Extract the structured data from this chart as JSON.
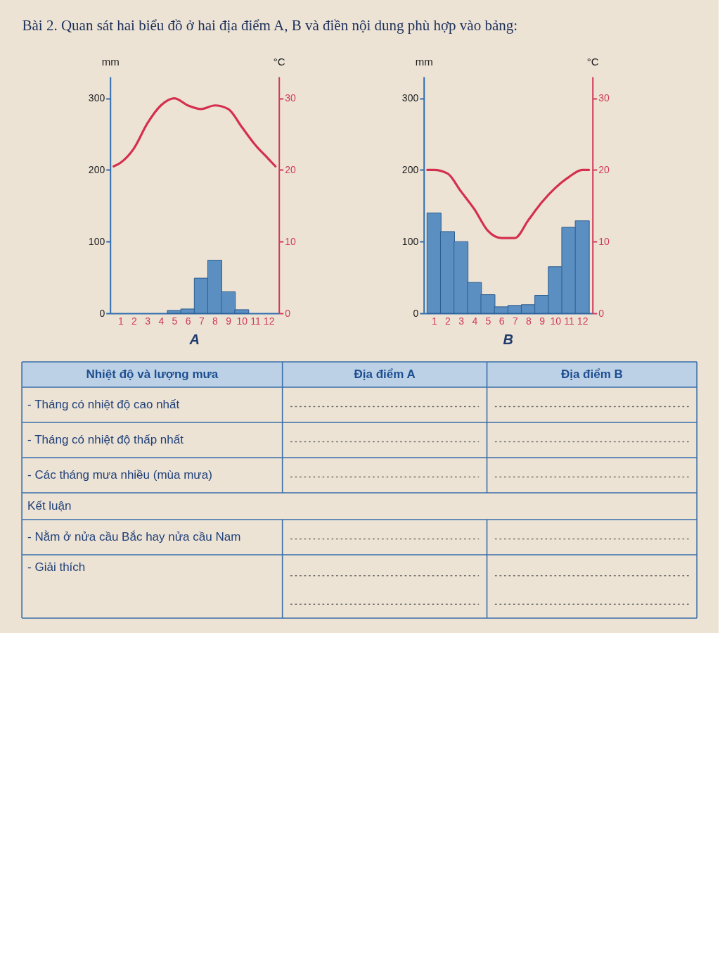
{
  "chart_data": [
    {
      "type": "other",
      "title": "Bài 2. Quan sát hai biểu đồ ở hai địa điểm A, B và điền nội dung phù hợp vào bảng:"
    },
    {
      "type": "bar",
      "title": "A",
      "ylabel": "mm",
      "y2label": "°C",
      "xlim": [
        0.5,
        12.5
      ],
      "xticks": [
        1,
        2,
        3,
        4,
        5,
        6,
        7,
        8,
        9,
        10,
        11,
        12
      ],
      "ylim": [
        0,
        330
      ],
      "yticks": [
        0,
        100,
        200,
        300
      ],
      "y2lim": [
        0,
        33
      ],
      "y2ticks": [
        0,
        10,
        20,
        30
      ],
      "series": [
        {
          "type": "bar",
          "color": "#5b8fc2",
          "x": [
            5,
            6,
            7,
            8,
            9,
            10
          ],
          "values": [
            4,
            6,
            49,
            74,
            30,
            5
          ]
        },
        {
          "type": "line",
          "axis": "y2",
          "color": "#d4304e",
          "x": [
            0.5,
            1,
            2,
            3,
            4,
            5,
            6,
            7,
            8,
            9,
            10,
            11,
            12,
            12.5
          ],
          "values": [
            20.5,
            21,
            23,
            26.5,
            29,
            30,
            29,
            28.5,
            29,
            28.5,
            26,
            23.5,
            21.5,
            20.5
          ]
        }
      ]
    },
    {
      "type": "bar",
      "title": "B",
      "ylabel": "mm",
      "y2label": "°C",
      "xlim": [
        0.5,
        12.5
      ],
      "xticks": [
        1,
        2,
        3,
        4,
        5,
        6,
        7,
        8,
        9,
        10,
        11,
        12
      ],
      "ylim": [
        0,
        330
      ],
      "yticks": [
        0,
        100,
        200,
        300
      ],
      "y2lim": [
        0,
        33
      ],
      "y2ticks": [
        0,
        10,
        20,
        30
      ],
      "series": [
        {
          "type": "bar",
          "color": "#5b8fc2",
          "x": [
            1,
            2,
            3,
            4,
            5,
            6,
            7,
            8,
            9,
            10,
            11,
            12
          ],
          "values": [
            140,
            114,
            100,
            43,
            26,
            9,
            11,
            12,
            25,
            65,
            120,
            129
          ]
        },
        {
          "type": "line",
          "axis": "y2",
          "color": "#d4304e",
          "x": [
            0.5,
            1,
            2,
            3,
            4,
            5,
            6,
            7,
            8,
            9,
            10,
            11,
            12,
            12.5
          ],
          "values": [
            20,
            20,
            19.5,
            17,
            14.5,
            11.5,
            10.5,
            10.5,
            13,
            15.5,
            17.5,
            19,
            20,
            20
          ]
        }
      ]
    },
    {
      "type": "other",
      "annotations": [
        "Nhiệt độ và lượng mưa",
        "Địa điểm A",
        "Địa điểm B",
        "- Tháng có nhiệt độ cao nhất",
        "- Tháng có nhiệt độ thấp nhất",
        "- Các tháng mưa nhiều (mùa mưa)",
        "Kết luận",
        "- Nằm ở nửa cầu Bắc hay nửa cầu Nam",
        "- Giải thích"
      ]
    }
  ]
}
